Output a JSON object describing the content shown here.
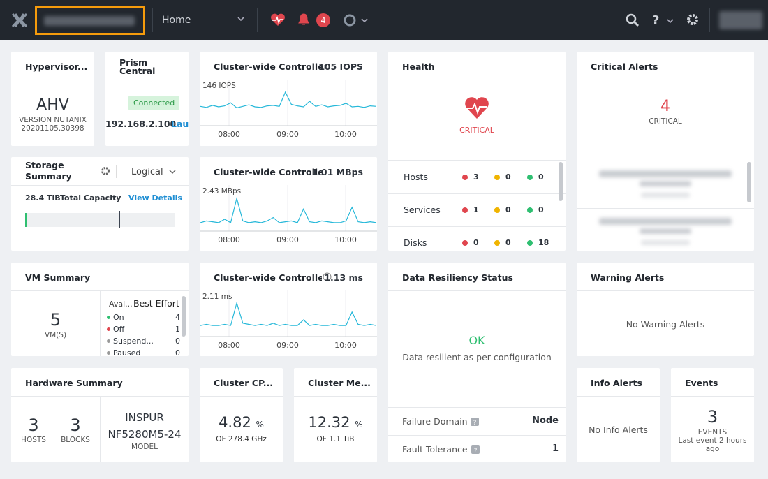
{
  "header": {
    "page": "Home",
    "alerts_badge": 4
  },
  "widgets": {
    "hypervisor": {
      "title": "Hypervisor...",
      "name": "AHV",
      "version_line1": "VERSION NUTANIX",
      "version_line2": "20201105.30398"
    },
    "prism_central": {
      "title": "Prism Central",
      "status": "Connected",
      "ip": "192.168.2.100",
      "link": "Lau"
    },
    "iops": {
      "title": "Cluster-wide Controller...",
      "value": "105 IOPS",
      "peak_label": "146 IOPS",
      "x_labels": [
        "08:00",
        "09:00",
        "10:00"
      ],
      "ylim": [
        80,
        150
      ],
      "values": [
        118,
        116,
        120,
        117,
        119,
        125,
        115,
        118,
        121,
        117,
        116,
        119,
        120,
        118,
        146,
        122,
        119,
        117,
        128,
        118,
        121,
        117,
        119,
        120,
        124,
        117,
        118,
        116,
        119,
        118
      ]
    },
    "bandwidth": {
      "title": "Cluster-wide Controlle...",
      "value": "1.01 MBps",
      "peak_label": "2.43 MBps",
      "x_labels": [
        "08:00",
        "09:00",
        "10:00"
      ],
      "ylim": [
        0.5,
        2.6
      ],
      "values": [
        1.0,
        1.1,
        1.05,
        1.0,
        1.2,
        1.0,
        2.43,
        1.1,
        1.0,
        1.05,
        1.0,
        1.1,
        1.3,
        1.0,
        1.05,
        1.1,
        1.0,
        1.8,
        1.05,
        1.0,
        1.1,
        1.05,
        1.0,
        1.0,
        1.1,
        1.9,
        1.05,
        1.0,
        1.05,
        1.0
      ]
    },
    "latency": {
      "title": "Cluster-wide Controller...",
      "value": "1.13 ms",
      "peak_label": "2.11 ms",
      "x_labels": [
        "08:00",
        "09:00",
        "10:00"
      ],
      "ylim": [
        0.6,
        2.2
      ],
      "values": [
        1.1,
        1.15,
        1.1,
        1.1,
        1.15,
        1.1,
        2.11,
        1.2,
        1.15,
        1.1,
        1.15,
        1.1,
        1.2,
        1.1,
        1.15,
        1.1,
        1.1,
        1.35,
        1.1,
        1.15,
        1.1,
        1.1,
        1.15,
        1.1,
        1.1,
        1.7,
        1.15,
        1.1,
        1.15,
        1.1
      ]
    },
    "health": {
      "title": "Health",
      "status": "CRITICAL",
      "rows": [
        {
          "label": "Hosts",
          "critical": 3,
          "warning": 0,
          "ok": 0
        },
        {
          "label": "Services",
          "critical": 1,
          "warning": 0,
          "ok": 0
        },
        {
          "label": "Disks",
          "critical": 0,
          "warning": 0,
          "ok": 18
        }
      ]
    },
    "critical_alerts": {
      "title": "Critical Alerts",
      "count": 4,
      "label": "CRITICAL"
    },
    "storage": {
      "title": "Storage Summary",
      "mode": "Logical",
      "capacity": "28.4 TiB",
      "capacity_label": "Total Capacity",
      "link": "View Details"
    },
    "vm_summary": {
      "title": "VM Summary",
      "count": 5,
      "count_label": "VM(S)",
      "column1": "Avai...",
      "column2": "Best Effort",
      "states": [
        {
          "label": "On",
          "count": 4
        },
        {
          "label": "Off",
          "count": 1
        },
        {
          "label": "Suspend...",
          "count": 0
        },
        {
          "label": "Paused",
          "count": 0
        }
      ]
    },
    "resiliency": {
      "title": "Data Resiliency Status",
      "status": "OK",
      "message": "Data resilient as per configuration",
      "failure_domain_label": "Failure Domain",
      "failure_domain": "Node",
      "fault_tolerance_label": "Fault Tolerance",
      "fault_tolerance": 1
    },
    "warning_alerts": {
      "title": "Warning Alerts",
      "message": "No Warning Alerts"
    },
    "hardware": {
      "title": "Hardware Summary",
      "hosts": 3,
      "hosts_label": "HOSTS",
      "blocks": 3,
      "blocks_label": "BLOCKS",
      "vendor": "INSPUR",
      "model": "NF5280M5-24",
      "model_label": "MODEL"
    },
    "cpu": {
      "title": "Cluster CP...",
      "value": "4.82",
      "unit": "%",
      "total": "OF 278.4 GHz"
    },
    "memory": {
      "title": "Cluster Me...",
      "value": "12.32",
      "unit": "%",
      "total": "OF 1.1 TiB"
    },
    "info_alerts": {
      "title": "Info Alerts",
      "message": "No Info Alerts"
    },
    "events": {
      "title": "Events",
      "count": 3,
      "label": "EVENTS",
      "last": "Last event 2 hours ago"
    }
  }
}
